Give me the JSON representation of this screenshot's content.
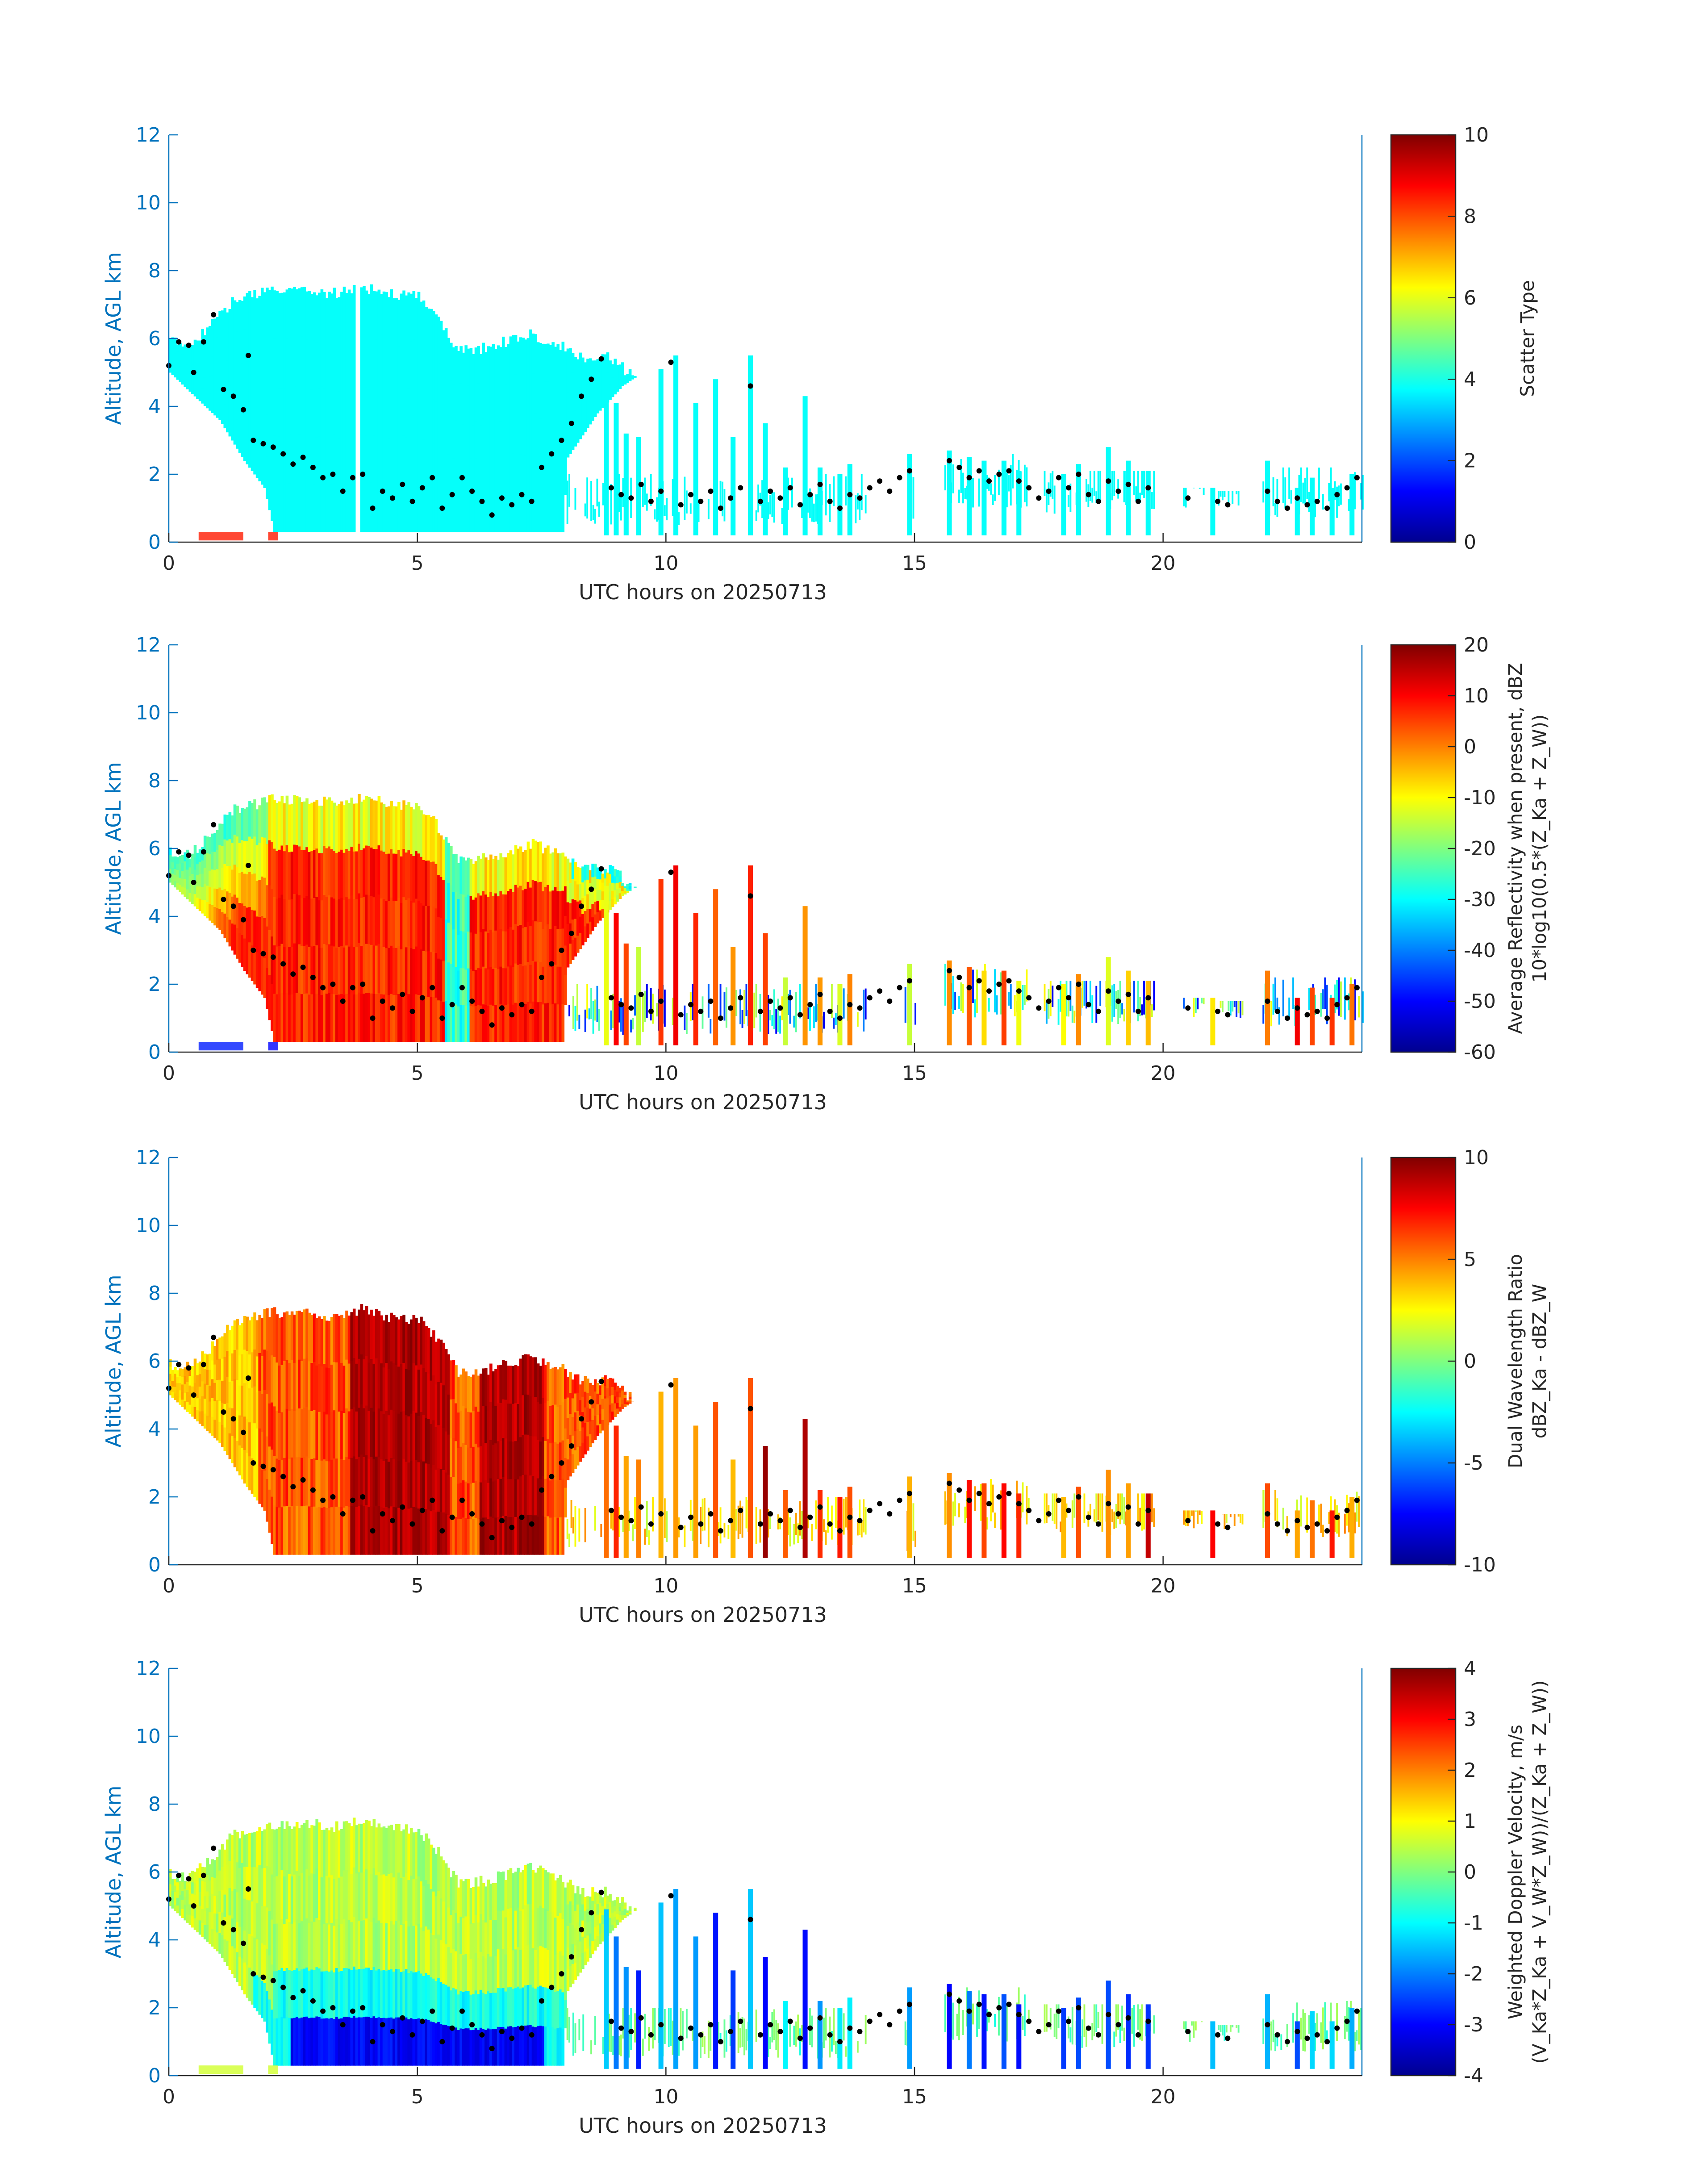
{
  "figure": {
    "title": "",
    "xlabel": "UTC hours on 20250713",
    "ylabel": "Altitude, AGL km"
  },
  "chart_data": [
    {
      "type": "heatmap",
      "id": "scatter_type",
      "xlabel": "UTC hours on 20250713",
      "ylabel": "Altitude, AGL km",
      "xlim": [
        0,
        24
      ],
      "ylim": [
        0,
        12
      ],
      "xticks": [
        0,
        5,
        10,
        15,
        20
      ],
      "yticks": [
        0,
        2,
        4,
        6,
        8,
        10,
        12
      ],
      "colorbar": {
        "label_lines": [
          "Scatter Type"
        ],
        "min": 0,
        "max": 10,
        "ticks": [
          0,
          2,
          4,
          6,
          8,
          10
        ]
      },
      "colormap": "jet",
      "dominant_value": 3.8,
      "grid": false
    },
    {
      "type": "heatmap",
      "id": "avg_reflectivity",
      "xlabel": "UTC hours on 20250713",
      "ylabel": "Altitude, AGL km",
      "xlim": [
        0,
        24
      ],
      "ylim": [
        0,
        12
      ],
      "xticks": [
        0,
        5,
        10,
        15,
        20
      ],
      "yticks": [
        0,
        2,
        4,
        6,
        8,
        10,
        12
      ],
      "colorbar": {
        "label_lines": [
          "Average Reflectivity when present, dBZ",
          "10*log10(0.5*(Z_Ka + Z_W))"
        ],
        "min": -60,
        "max": 20,
        "ticks": [
          -60,
          -50,
          -40,
          -30,
          -20,
          -10,
          0,
          10,
          20
        ]
      },
      "colormap": "jet",
      "grid": false
    },
    {
      "type": "heatmap",
      "id": "dual_wavelength_ratio",
      "xlabel": "UTC hours on 20250713",
      "ylabel": "Altitude, AGL km",
      "xlim": [
        0,
        24
      ],
      "ylim": [
        0,
        12
      ],
      "xticks": [
        0,
        5,
        10,
        15,
        20
      ],
      "yticks": [
        0,
        2,
        4,
        6,
        8,
        10,
        12
      ],
      "colorbar": {
        "label_lines": [
          "Dual Wavelength Ratio",
          "dBZ_Ka - dBZ_W"
        ],
        "min": -10,
        "max": 10,
        "ticks": [
          -10,
          -5,
          0,
          5,
          10
        ]
      },
      "colormap": "jet",
      "grid": false
    },
    {
      "type": "heatmap",
      "id": "weighted_doppler_velocity",
      "xlabel": "UTC hours on 20250713",
      "ylabel": "Altitude, AGL km",
      "xlim": [
        0,
        24
      ],
      "ylim": [
        0,
        12
      ],
      "xticks": [
        0,
        5,
        10,
        15,
        20
      ],
      "yticks": [
        0,
        2,
        4,
        6,
        8,
        10,
        12
      ],
      "colorbar": {
        "label_lines": [
          "Weighted Doppler Velocity, m/s",
          "(V_Ka*Z_Ka + V_W*Z_W))/(Z_Ka + Z_W))"
        ],
        "min": -4,
        "max": 4,
        "ticks": [
          -4,
          -3,
          -2,
          -1,
          0,
          1,
          2,
          3,
          4
        ]
      },
      "colormap": "jet",
      "grid": false
    }
  ],
  "cloud_structure": {
    "main_cloud_top_km": [
      [
        0.0,
        6.1
      ],
      [
        0.4,
        6.0
      ],
      [
        0.9,
        6.7
      ],
      [
        1.3,
        7.3
      ],
      [
        2.0,
        7.6
      ],
      [
        2.6,
        7.6
      ],
      [
        3.4,
        7.5
      ],
      [
        3.8,
        7.7
      ],
      [
        4.4,
        7.5
      ],
      [
        5.0,
        7.4
      ],
      [
        5.4,
        6.8
      ],
      [
        5.8,
        5.8
      ],
      [
        6.3,
        5.9
      ],
      [
        6.8,
        6.1
      ],
      [
        7.3,
        6.3
      ],
      [
        7.8,
        6.0
      ],
      [
        8.3,
        5.6
      ],
      [
        8.8,
        5.6
      ],
      [
        9.1,
        5.3
      ],
      [
        9.4,
        4.9
      ]
    ],
    "main_cloud_base_km": [
      [
        0.0,
        5.0
      ],
      [
        0.5,
        4.3
      ],
      [
        1.0,
        3.6
      ],
      [
        1.5,
        2.4
      ],
      [
        1.9,
        1.6
      ],
      [
        2.1,
        0.3
      ],
      [
        7.9,
        0.3
      ],
      [
        8.0,
        2.5
      ],
      [
        8.6,
        3.8
      ],
      [
        9.1,
        4.6
      ],
      [
        9.4,
        4.9
      ]
    ],
    "rain_shafts_h": [
      [
        8.8,
        4.9
      ],
      [
        9.0,
        4.1
      ],
      [
        9.2,
        3.2
      ],
      [
        9.45,
        3.1
      ],
      [
        9.9,
        5.1
      ],
      [
        10.2,
        5.5
      ],
      [
        10.6,
        4.1
      ],
      [
        11.0,
        4.8
      ],
      [
        11.35,
        3.1
      ],
      [
        11.7,
        5.5
      ],
      [
        12.0,
        3.5
      ],
      [
        12.4,
        2.2
      ],
      [
        12.8,
        4.3
      ],
      [
        13.1,
        2.2
      ],
      [
        13.5,
        2.0
      ],
      [
        13.7,
        2.3
      ],
      [
        14.9,
        2.6
      ],
      [
        15.7,
        2.7
      ],
      [
        16.1,
        2.5
      ],
      [
        16.4,
        2.4
      ],
      [
        16.8,
        2.4
      ],
      [
        17.1,
        2.1
      ],
      [
        18.0,
        2.0
      ],
      [
        18.3,
        2.3
      ],
      [
        18.9,
        2.8
      ],
      [
        19.3,
        2.4
      ],
      [
        19.7,
        2.1
      ],
      [
        21.0,
        1.6
      ],
      [
        22.1,
        2.4
      ],
      [
        22.7,
        1.6
      ],
      [
        23.0,
        1.9
      ],
      [
        23.4,
        1.6
      ],
      [
        23.8,
        2.0
      ]
    ],
    "low_cloud_segments": [
      [
        8.0,
        14.0,
        0.5,
        2.0
      ],
      [
        14.8,
        15.0,
        0.4,
        2.6
      ],
      [
        15.6,
        17.3,
        1.0,
        2.6
      ],
      [
        17.6,
        19.8,
        0.8,
        2.1
      ],
      [
        20.4,
        20.8,
        1.0,
        1.6
      ],
      [
        21.1,
        21.6,
        1.0,
        1.5
      ],
      [
        22.0,
        24.0,
        0.7,
        2.2
      ]
    ],
    "surface_returns": [
      [
        0.6,
        1.5
      ],
      [
        2.0,
        2.2
      ]
    ],
    "lidar_base_points_km": [
      [
        0.0,
        5.2
      ],
      [
        0.2,
        5.9
      ],
      [
        0.4,
        5.8
      ],
      [
        0.5,
        5.0
      ],
      [
        0.7,
        5.9
      ],
      [
        0.9,
        6.7
      ],
      [
        1.1,
        4.5
      ],
      [
        1.3,
        4.3
      ],
      [
        1.5,
        3.9
      ],
      [
        1.6,
        5.5
      ],
      [
        1.7,
        3.0
      ],
      [
        1.9,
        2.9
      ],
      [
        2.1,
        2.8
      ],
      [
        2.3,
        2.6
      ],
      [
        2.5,
        2.3
      ],
      [
        2.7,
        2.5
      ],
      [
        2.9,
        2.2
      ],
      [
        3.1,
        1.9
      ],
      [
        3.3,
        2.0
      ],
      [
        3.5,
        1.5
      ],
      [
        3.7,
        1.9
      ],
      [
        3.9,
        2.0
      ],
      [
        4.1,
        1.0
      ],
      [
        4.3,
        1.5
      ],
      [
        4.5,
        1.3
      ],
      [
        4.7,
        1.7
      ],
      [
        4.9,
        1.2
      ],
      [
        5.1,
        1.6
      ],
      [
        5.3,
        1.9
      ],
      [
        5.5,
        1.0
      ],
      [
        5.7,
        1.4
      ],
      [
        5.9,
        1.9
      ],
      [
        6.1,
        1.5
      ],
      [
        6.3,
        1.2
      ],
      [
        6.5,
        0.8
      ],
      [
        6.7,
        1.3
      ],
      [
        6.9,
        1.1
      ],
      [
        7.1,
        1.4
      ],
      [
        7.3,
        1.2
      ],
      [
        7.5,
        2.2
      ],
      [
        7.7,
        2.6
      ],
      [
        7.9,
        3.0
      ],
      [
        8.1,
        3.5
      ],
      [
        8.3,
        4.3
      ],
      [
        8.5,
        4.8
      ],
      [
        8.7,
        5.4
      ],
      [
        8.9,
        1.6
      ],
      [
        9.1,
        1.4
      ],
      [
        9.3,
        1.3
      ],
      [
        9.5,
        1.7
      ],
      [
        9.7,
        1.2
      ],
      [
        9.9,
        1.5
      ],
      [
        10.1,
        5.3
      ],
      [
        10.3,
        1.1
      ],
      [
        10.5,
        1.4
      ],
      [
        10.7,
        1.2
      ],
      [
        10.9,
        1.5
      ],
      [
        11.1,
        1.0
      ],
      [
        11.3,
        1.3
      ],
      [
        11.5,
        1.6
      ],
      [
        11.7,
        4.6
      ],
      [
        11.9,
        1.2
      ],
      [
        12.1,
        1.5
      ],
      [
        12.3,
        1.3
      ],
      [
        12.5,
        1.6
      ],
      [
        12.7,
        1.1
      ],
      [
        12.9,
        1.4
      ],
      [
        13.1,
        1.7
      ],
      [
        13.3,
        1.2
      ],
      [
        13.5,
        1.0
      ],
      [
        13.7,
        1.4
      ],
      [
        13.9,
        1.3
      ],
      [
        14.1,
        1.6
      ],
      [
        14.3,
        1.8
      ],
      [
        14.5,
        1.5
      ],
      [
        14.7,
        1.9
      ],
      [
        14.9,
        2.1
      ],
      [
        15.7,
        2.4
      ],
      [
        15.9,
        2.2
      ],
      [
        16.1,
        1.9
      ],
      [
        16.3,
        2.1
      ],
      [
        16.5,
        1.8
      ],
      [
        16.7,
        2.0
      ],
      [
        16.9,
        2.1
      ],
      [
        17.1,
        1.8
      ],
      [
        17.3,
        1.6
      ],
      [
        17.5,
        1.3
      ],
      [
        17.7,
        1.5
      ],
      [
        17.9,
        1.9
      ],
      [
        18.1,
        1.6
      ],
      [
        18.3,
        2.0
      ],
      [
        18.5,
        1.4
      ],
      [
        18.7,
        1.2
      ],
      [
        18.9,
        1.8
      ],
      [
        19.1,
        1.5
      ],
      [
        19.3,
        1.7
      ],
      [
        19.5,
        1.2
      ],
      [
        19.7,
        1.6
      ],
      [
        20.5,
        1.3
      ],
      [
        21.1,
        1.2
      ],
      [
        21.3,
        1.1
      ],
      [
        22.1,
        1.5
      ],
      [
        22.3,
        1.2
      ],
      [
        22.5,
        1.0
      ],
      [
        22.7,
        1.3
      ],
      [
        22.9,
        1.1
      ],
      [
        23.1,
        1.2
      ],
      [
        23.3,
        1.0
      ],
      [
        23.5,
        1.4
      ],
      [
        23.7,
        1.6
      ],
      [
        23.9,
        1.9
      ]
    ]
  }
}
